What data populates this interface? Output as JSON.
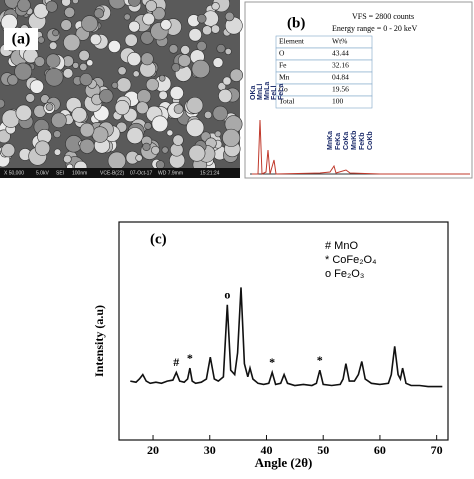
{
  "panels": {
    "a": {
      "label": "(a)",
      "info": [
        "X 50,000",
        "5.0kV",
        "SEI",
        "100nm",
        "VCE-B(22)",
        "07-Oct-17",
        "WD 7.9mm",
        "15:21:24"
      ]
    },
    "b": {
      "label": "(b)",
      "vfs": "VFS = 2800 counts",
      "range": "Energy range = 0 - 20 keV",
      "table": {
        "header": [
          "Element",
          "Wt%"
        ],
        "rows": [
          [
            "O",
            "43.44"
          ],
          [
            "Fe",
            "32.16"
          ],
          [
            "Mn",
            "04.84"
          ],
          [
            "Co",
            "19.56"
          ],
          [
            "Total",
            "100"
          ]
        ]
      },
      "peaks_low": [
        "OKa",
        "MnLl",
        "MnLa",
        "FeLl",
        "FeLa"
      ],
      "peaks_high": [
        "MnKa",
        "FeKa",
        "CoKa",
        "MnKb",
        "FeKb",
        "CoKb"
      ]
    }
  },
  "chart_data": {
    "type": "line",
    "panel_label": "(c)",
    "x_label": "Angle (2θ)",
    "y_label": "Intensity (a.u)",
    "legend": [
      "# MnO",
      "* CoFe₂O₄",
      "o Fe₂O₃"
    ],
    "annotations": [
      {
        "text": "#",
        "x": 24.1
      },
      {
        "text": "*",
        "x": 26.5
      },
      {
        "text": "o",
        "x": 33.1
      },
      {
        "text": "*",
        "x": 41
      },
      {
        "text": "*",
        "x": 49.4
      }
    ],
    "xlim": [
      14,
      72
    ],
    "xticks": [
      20,
      30,
      40,
      50,
      60,
      70
    ],
    "ylim": [
      0,
      100
    ],
    "series": [
      {
        "color": "#111111",
        "x": [
          16,
          17,
          17.6,
          18.2,
          18.8,
          19.5,
          20.5,
          21.5,
          22.5,
          23.5,
          24.1,
          24.7,
          25.5,
          26.1,
          26.5,
          26.9,
          27.5,
          28.5,
          29.4,
          30.1,
          30.8,
          31.5,
          32.4,
          33.1,
          33.7,
          34.4,
          34.9,
          35.5,
          36.1,
          36.7,
          37.1,
          37.6,
          38.5,
          39.5,
          40.4,
          41,
          41.6,
          42.5,
          43.1,
          43.7,
          45,
          46.5,
          48,
          48.8,
          49.4,
          50,
          51.5,
          53,
          53.5,
          54,
          54.6,
          55.5,
          56.2,
          56.8,
          57.4,
          58.5,
          60,
          61.5,
          62,
          62.6,
          63.2,
          63.6,
          64,
          64.6,
          65.5,
          67,
          68.5,
          70,
          71
        ],
        "values": [
          27,
          26.5,
          28,
          30,
          27,
          26,
          26.5,
          26,
          27,
          27.5,
          31,
          27,
          26.5,
          28,
          33,
          27,
          26,
          26.5,
          28,
          38,
          28,
          27,
          29,
          62,
          32,
          30,
          40,
          70,
          35,
          29,
          33,
          28,
          26,
          25.5,
          26,
          31,
          25.5,
          26,
          30,
          26,
          25,
          25.5,
          25,
          26,
          32,
          25.5,
          25,
          25.5,
          28,
          35,
          27,
          27,
          30,
          36,
          28,
          26,
          25.5,
          26,
          30,
          43,
          30,
          28,
          33,
          26,
          25,
          25,
          24.5,
          24.5,
          24.5
        ]
      }
    ]
  }
}
